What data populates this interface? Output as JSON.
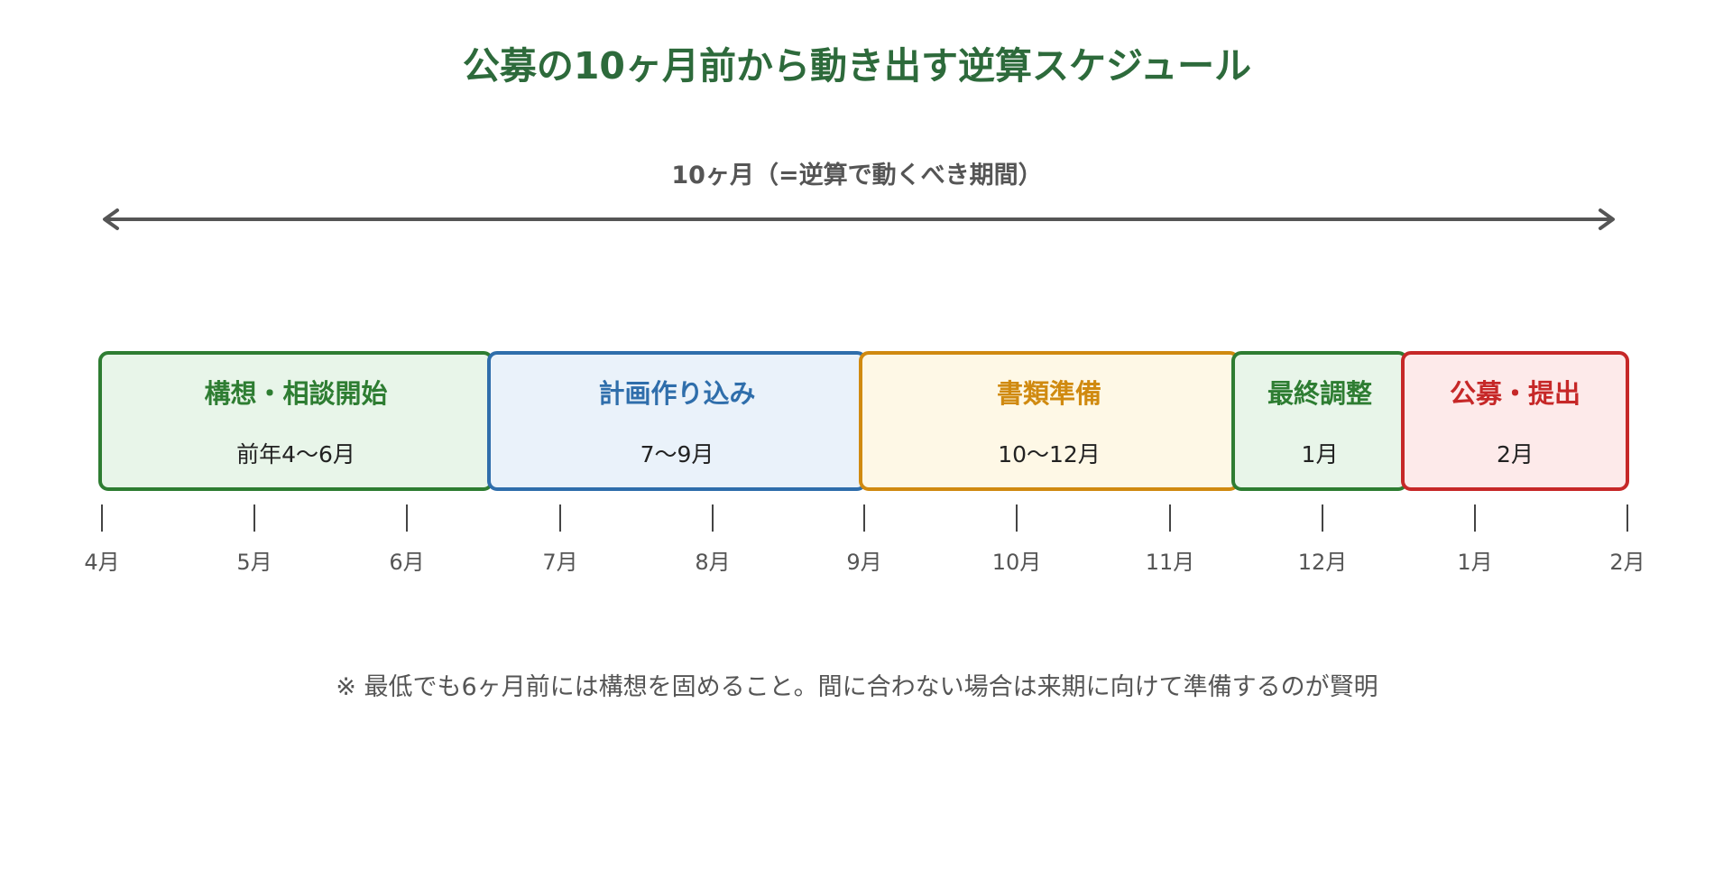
{
  "title": "公募の10ヶ月前から動き出す逆算スケジュール",
  "span": {
    "label": "10ヶ月（=逆算で動くべき期間）"
  },
  "phases": [
    {
      "name": "構想・相談開始",
      "period": "前年4〜6月",
      "border": "#2e7d32",
      "fill": "#e8f5e9",
      "text": "#2e7d32"
    },
    {
      "name": "計画作り込み",
      "period": "7〜9月",
      "border": "#2f6eab",
      "fill": "#eaf2fa",
      "text": "#2f6eab"
    },
    {
      "name": "書類準備",
      "period": "10〜12月",
      "border": "#d08a10",
      "fill": "#fef8e6",
      "text": "#d08a10"
    },
    {
      "name": "最終調整",
      "period": "1月",
      "border": "#2e7d32",
      "fill": "#e8f5e9",
      "text": "#2e7d32"
    },
    {
      "name": "公募・提出",
      "period": "2月",
      "border": "#c62828",
      "fill": "#fdeaea",
      "text": "#c62828"
    }
  ],
  "months": [
    "4月",
    "5月",
    "6月",
    "7月",
    "8月",
    "9月",
    "10月",
    "11月",
    "12月",
    "1月",
    "2月"
  ],
  "note": "※ 最低でも6ヶ月前には構想を固めること。間に合わない場合は来期に向けて準備するのが賢明"
}
